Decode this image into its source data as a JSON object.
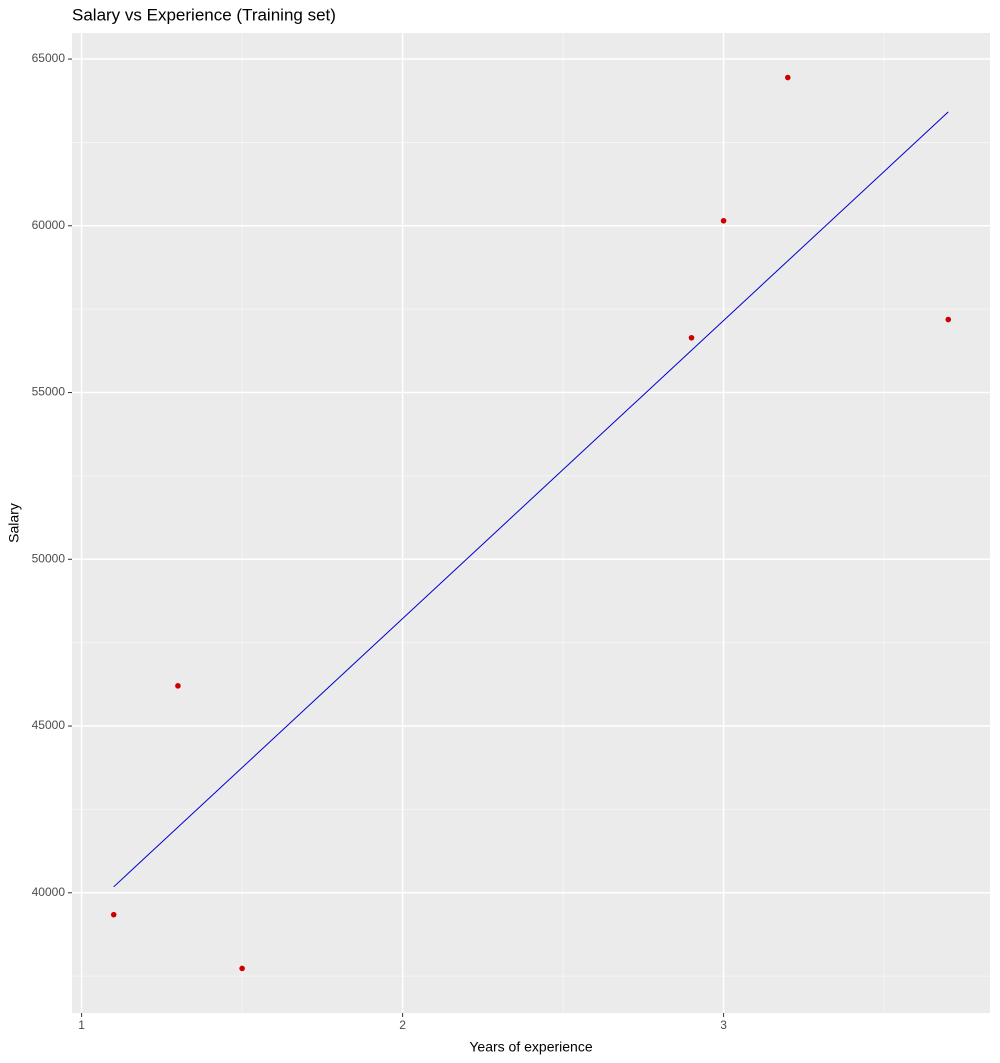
{
  "chart_data": {
    "type": "scatter",
    "title": "Salary vs Experience (Training set)",
    "x_label": "Years of experience",
    "y_label": "Salary",
    "series": [
      {
        "type": "scatter",
        "color": "#cc0000",
        "x": [
          1.1,
          1.3,
          1.5,
          2.9,
          3.0,
          3.2,
          3.7
        ],
        "values": [
          39343,
          46205,
          37731,
          56642,
          60150,
          64445,
          57189
        ]
      },
      {
        "type": "line",
        "color": "#0000cc",
        "x": [
          1.1,
          3.7
        ],
        "values": [
          40179,
          63415
        ]
      }
    ],
    "xlim": [
      0.97,
      3.83
    ],
    "ylim": [
      36395,
      65781
    ],
    "xticks": [
      1,
      2,
      3
    ],
    "yticks": [
      40000,
      45000,
      50000,
      55000,
      60000,
      65000
    ],
    "x_minor_grid": [
      1.5,
      2.5,
      3.5
    ],
    "y_minor_grid": [
      37500,
      42500,
      47500,
      52500,
      57500,
      62500
    ],
    "grid": true
  }
}
